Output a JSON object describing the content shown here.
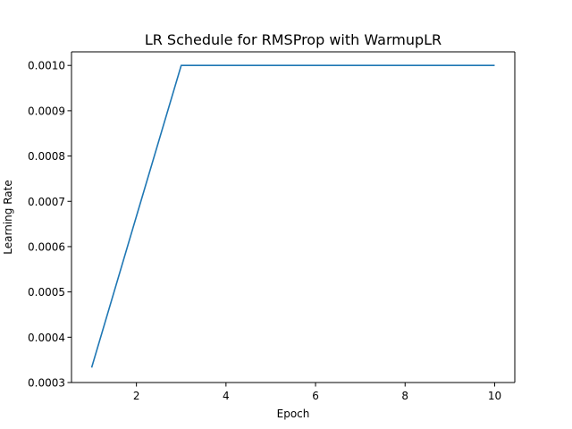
{
  "chart_data": {
    "type": "line",
    "title": "LR Schedule for RMSProp with WarmupLR",
    "xlabel": "Epoch",
    "ylabel": "Learning Rate",
    "xlim": [
      0.55,
      10.45
    ],
    "ylim": [
      0.0003,
      0.00103
    ],
    "grid": false,
    "x_ticks": [
      2,
      4,
      6,
      8,
      10
    ],
    "x_tick_labels": [
      "2",
      "4",
      "6",
      "8",
      "10"
    ],
    "y_ticks": [
      0.0003,
      0.0004,
      0.0005,
      0.0006,
      0.0007,
      0.0008,
      0.0009,
      0.001
    ],
    "y_tick_labels": [
      "0.0003",
      "0.0004",
      "0.0005",
      "0.0006",
      "0.0007",
      "0.0008",
      "0.0009",
      "0.0010"
    ],
    "series": [
      {
        "color": "#1f77b4",
        "x": [
          1,
          2,
          3,
          4,
          5,
          6,
          7,
          8,
          9,
          10
        ],
        "values": [
          0.000333,
          0.000667,
          0.001,
          0.001,
          0.001,
          0.001,
          0.001,
          0.001,
          0.001,
          0.001
        ]
      }
    ]
  }
}
